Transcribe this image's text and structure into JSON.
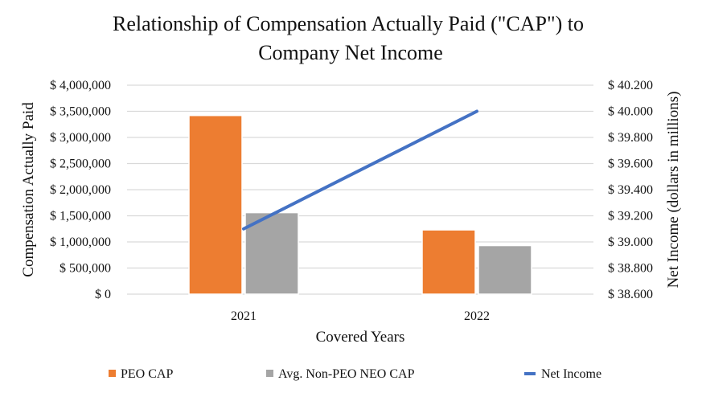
{
  "chart_data": {
    "type": "bar",
    "title_lines": [
      "Relationship of Compensation Actually Paid (\"CAP\") to",
      "Company Net Income"
    ],
    "categories": [
      "2021",
      "2022"
    ],
    "xlabel": "Covered Years",
    "ylabel": "Compensation Actually Paid",
    "y2label": "Net Income (dollars in millions)",
    "ylim": [
      0,
      4000000
    ],
    "y2lim": [
      38.6,
      40.2
    ],
    "y_ticks": [
      "$ 0",
      "$ 500,000",
      "$ 1,000,000",
      "$ 1,500,000",
      "$ 2,000,000",
      "$ 2,500,000",
      "$ 3,000,000",
      "$ 3,500,000",
      "$ 4,000,000"
    ],
    "y2_ticks": [
      "$ 38.600",
      "$ 38.800",
      "$ 39.000",
      "$ 39.200",
      "$ 39.400",
      "$ 39.600",
      "$ 39.800",
      "$ 40.000",
      "$ 40.200"
    ],
    "grid": true,
    "legend_position": "bottom",
    "series": [
      {
        "name": "PEO CAP",
        "type": "bar",
        "axis": "left",
        "color": "#ED7D31",
        "values": [
          3420000,
          1230000
        ]
      },
      {
        "name": "Avg. Non-PEO NEO CAP",
        "type": "bar",
        "axis": "left",
        "color": "#A5A5A5",
        "values": [
          1560000,
          930000
        ]
      },
      {
        "name": "Net Income",
        "type": "line",
        "axis": "right",
        "color": "#4472C4",
        "values": [
          39.1,
          40.0
        ]
      }
    ]
  }
}
